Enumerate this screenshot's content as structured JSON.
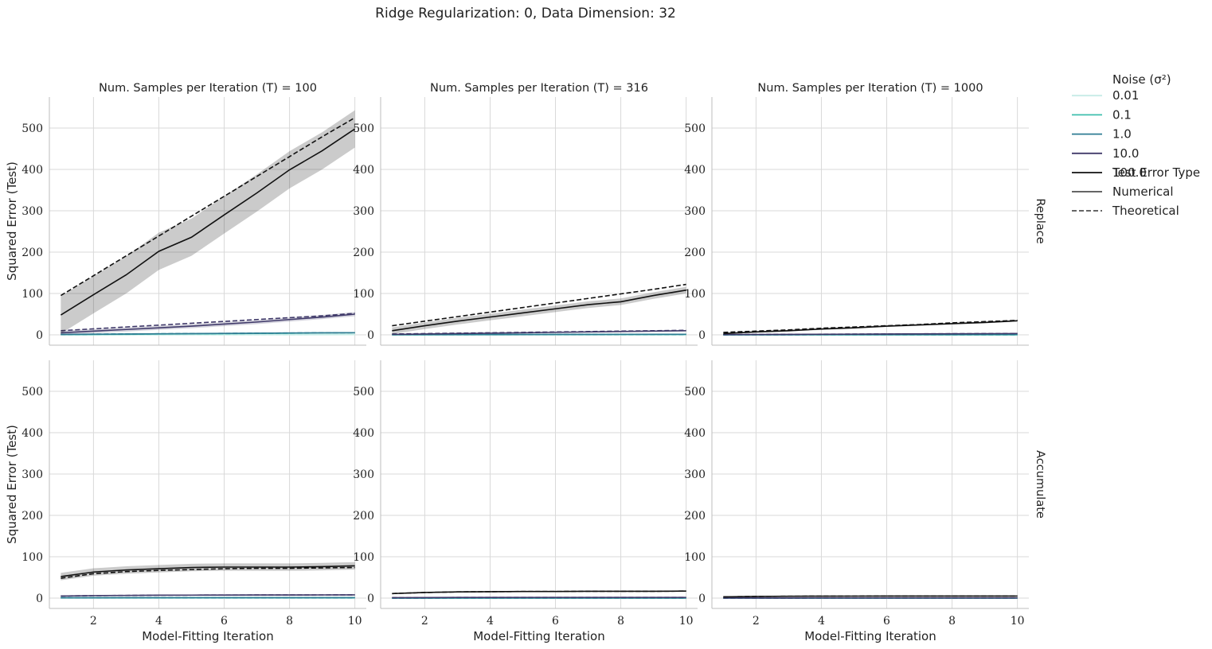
{
  "title": "Ridge Regularization: 0, Data Dimension: 32",
  "colors": {
    "grid": "#d9d9d9",
    "axis": "#bdbdbd",
    "noise": {
      "0.01": "#c6ece6",
      "0.1": "#3fbfae",
      "1.0": "#2f7c93",
      "10.0": "#403a6a",
      "100.0": "#111111"
    }
  },
  "legend": {
    "hue_title": "Noise (σ²)",
    "hue_entries": [
      "0.01",
      "0.1",
      "1.0",
      "10.0",
      "100.0"
    ],
    "style_title": "Test Error Type",
    "style_entries": [
      "Numerical",
      "Theoretical"
    ]
  },
  "chart_data": {
    "type": "line",
    "x": [
      1,
      2,
      3,
      4,
      5,
      6,
      7,
      8,
      9,
      10
    ],
    "xticks": [
      2,
      4,
      6,
      8,
      10
    ],
    "yticks": [
      0,
      100,
      200,
      300,
      400,
      500
    ],
    "xlim": [
      0.65,
      10.35
    ],
    "ylim": [
      -25,
      575
    ],
    "xlabel": "Model-Fitting Iteration",
    "ylabel": "Squared Error (Test)",
    "columns": [
      "Num. Samples per Iteration (T) = 100",
      "Num. Samples per Iteration (T) = 316",
      "Num. Samples per Iteration (T) = 1000"
    ],
    "rows": [
      "Replace",
      "Accumulate"
    ],
    "panels": [
      [
        {
          "series": [
            {
              "noise": "0.01",
              "numerical": [
                0.05,
                0.1,
                0.15,
                0.2,
                0.25,
                0.3,
                0.35,
                0.4,
                0.45,
                0.5
              ],
              "theoretical": [
                0.1,
                0.1,
                0.2,
                0.2,
                0.3,
                0.3,
                0.4,
                0.4,
                0.5,
                0.5
              ],
              "band": 0
            },
            {
              "noise": "0.1",
              "numerical": [
                0.5,
                0.9,
                1.4,
                1.9,
                2.4,
                2.9,
                3.4,
                3.9,
                4.4,
                4.9
              ],
              "theoretical": [
                1,
                1.5,
                2,
                2.5,
                3,
                3,
                3.5,
                4,
                4.5,
                5
              ],
              "band": 0
            },
            {
              "noise": "1.0",
              "numerical": [
                1,
                1.5,
                2,
                2.5,
                3,
                3.5,
                4,
                4.5,
                5,
                5.2
              ],
              "theoretical": [
                1,
                1.5,
                2,
                2.5,
                3,
                3.5,
                4,
                4.5,
                5,
                5.3
              ],
              "band": 0.5
            },
            {
              "noise": "10.0",
              "numerical": [
                5,
                9,
                13,
                17,
                21,
                26,
                31,
                37,
                43,
                50
              ],
              "theoretical": [
                10,
                14.5,
                19,
                23.5,
                28,
                32.5,
                37,
                41.5,
                46,
                52
              ],
              "band": 5
            },
            {
              "noise": "100.0",
              "numerical": [
                48,
                97,
                145,
                202,
                236,
                290,
                343,
                399,
                445,
                498
              ],
              "theoretical": [
                95,
                143,
                191,
                239,
                287,
                335,
                383,
                431,
                479,
                525
              ],
              "band": 45
            }
          ]
        },
        {
          "series": [
            {
              "noise": "0.01",
              "numerical": [
                0,
                0,
                0,
                0,
                0,
                0,
                0,
                0,
                0,
                0
              ],
              "theoretical": [
                0,
                0,
                0,
                0,
                0,
                0,
                0,
                0,
                0,
                0
              ],
              "band": 0
            },
            {
              "noise": "0.1",
              "numerical": [
                0.1,
                0.2,
                0.3,
                0.4,
                0.5,
                0.6,
                0.7,
                0.8,
                0.9,
                1
              ],
              "theoretical": [
                0.2,
                0.3,
                0.4,
                0.5,
                0.6,
                0.7,
                0.8,
                0.9,
                1,
                1.1
              ],
              "band": 0
            },
            {
              "noise": "1.0",
              "numerical": [
                0.5,
                0.6,
                0.7,
                0.8,
                0.9,
                1,
                1.1,
                1.2,
                1.3,
                1.4
              ],
              "theoretical": [
                0.5,
                0.6,
                0.7,
                0.8,
                0.9,
                1,
                1.1,
                1.2,
                1.3,
                1.4
              ],
              "band": 0
            },
            {
              "noise": "10.0",
              "numerical": [
                1,
                2,
                3,
                4,
                5,
                6,
                7,
                8,
                9,
                10
              ],
              "theoretical": [
                2,
                3,
                4,
                5,
                6,
                7,
                8,
                9,
                10,
                11
              ],
              "band": 1
            },
            {
              "noise": "100.0",
              "numerical": [
                10,
                22,
                33,
                43,
                53,
                63,
                73,
                80,
                95,
                108
              ],
              "theoretical": [
                22,
                33,
                44,
                55,
                66,
                77,
                88,
                99,
                110,
                122
              ],
              "band": 8
            }
          ]
        },
        {
          "series": [
            {
              "noise": "0.01",
              "numerical": [
                0,
                0,
                0,
                0,
                0,
                0,
                0,
                0,
                0,
                0
              ],
              "theoretical": [
                0,
                0,
                0,
                0,
                0,
                0,
                0,
                0,
                0,
                0
              ],
              "band": 0
            },
            {
              "noise": "0.1",
              "numerical": [
                0,
                0,
                0,
                0,
                0,
                0,
                0,
                0,
                0,
                0
              ],
              "theoretical": [
                0,
                0,
                0,
                0,
                0,
                0,
                0,
                0,
                0,
                0
              ],
              "band": 0
            },
            {
              "noise": "1.0",
              "numerical": [
                0.2,
                0.3,
                0.4,
                0.5,
                0.6,
                0.7,
                0.8,
                0.9,
                1,
                1.1
              ],
              "theoretical": [
                0.2,
                0.3,
                0.4,
                0.5,
                0.6,
                0.7,
                0.8,
                0.9,
                1,
                1.1
              ],
              "band": 0
            },
            {
              "noise": "10.0",
              "numerical": [
                0.5,
                0.8,
                1.1,
                1.4,
                1.7,
                2,
                2.3,
                2.6,
                2.9,
                3.2
              ],
              "theoretical": [
                0.6,
                0.9,
                1.2,
                1.5,
                1.8,
                2.1,
                2.4,
                2.7,
                3,
                3.3
              ],
              "band": 0.3
            },
            {
              "noise": "100.0",
              "numerical": [
                3,
                7,
                10,
                14,
                17,
                21,
                24,
                27,
                30,
                34
              ],
              "theoretical": [
                6,
                9,
                12,
                16,
                19,
                22,
                25,
                29,
                32,
                35
              ],
              "band": 2
            }
          ]
        }
      ],
      [
        {
          "series": [
            {
              "noise": "0.01",
              "numerical": [
                0,
                0,
                0,
                0,
                0,
                0,
                0,
                0,
                0,
                0
              ],
              "theoretical": [
                0,
                0,
                0,
                0,
                0,
                0,
                0,
                0,
                0,
                0
              ],
              "band": 0
            },
            {
              "noise": "0.1",
              "numerical": [
                0.5,
                0.6,
                0.7,
                0.7,
                0.8,
                0.8,
                0.8,
                0.8,
                0.8,
                0.8
              ],
              "theoretical": [
                0.5,
                0.6,
                0.7,
                0.7,
                0.8,
                0.8,
                0.8,
                0.8,
                0.8,
                0.8
              ],
              "band": 0
            },
            {
              "noise": "1.0",
              "numerical": [
                0.8,
                0.9,
                1,
                1,
                1.1,
                1.1,
                1.1,
                1.1,
                1.1,
                1.1
              ],
              "theoretical": [
                0.8,
                0.9,
                1,
                1,
                1.1,
                1.1,
                1.1,
                1.1,
                1.1,
                1.1
              ],
              "band": 0
            },
            {
              "noise": "10.0",
              "numerical": [
                5,
                6,
                6.5,
                7,
                7.2,
                7.4,
                7.5,
                7.6,
                7.7,
                7.8
              ],
              "theoretical": [
                5,
                6,
                6.5,
                7,
                7.2,
                7.4,
                7.5,
                7.6,
                7.7,
                7.8
              ],
              "band": 1
            },
            {
              "noise": "100.0",
              "numerical": [
                52,
                63,
                68,
                71,
                74,
                75,
                75,
                75,
                76,
                78
              ],
              "theoretical": [
                48,
                59,
                64,
                67,
                69,
                71,
                72,
                72,
                73,
                74
              ],
              "band": 9
            }
          ]
        },
        {
          "series": [
            {
              "noise": "0.01",
              "numerical": [
                0,
                0,
                0,
                0,
                0,
                0,
                0,
                0,
                0,
                0
              ],
              "theoretical": [
                0,
                0,
                0,
                0,
                0,
                0,
                0,
                0,
                0,
                0
              ],
              "band": 0
            },
            {
              "noise": "0.1",
              "numerical": [
                0.1,
                0.1,
                0.1,
                0.1,
                0.1,
                0.1,
                0.1,
                0.1,
                0.1,
                0.1
              ],
              "theoretical": [
                0.1,
                0.1,
                0.1,
                0.1,
                0.1,
                0.1,
                0.1,
                0.1,
                0.1,
                0.1
              ],
              "band": 0
            },
            {
              "noise": "1.0",
              "numerical": [
                0.2,
                0.2,
                0.3,
                0.3,
                0.3,
                0.3,
                0.3,
                0.3,
                0.3,
                0.3
              ],
              "theoretical": [
                0.2,
                0.2,
                0.3,
                0.3,
                0.3,
                0.3,
                0.3,
                0.3,
                0.3,
                0.3
              ],
              "band": 0
            },
            {
              "noise": "10.0",
              "numerical": [
                1,
                1.3,
                1.5,
                1.6,
                1.7,
                1.7,
                1.7,
                1.7,
                1.7,
                1.7
              ],
              "theoretical": [
                1,
                1.3,
                1.5,
                1.6,
                1.7,
                1.7,
                1.7,
                1.7,
                1.7,
                1.7
              ],
              "band": 0.2
            },
            {
              "noise": "100.0",
              "numerical": [
                11,
                13.5,
                15,
                15.5,
                16,
                16,
                16.5,
                16.5,
                16.5,
                17
              ],
              "theoretical": [
                11,
                13.5,
                15,
                15.5,
                16,
                16,
                16.5,
                16.5,
                16.5,
                17
              ],
              "band": 1
            }
          ]
        },
        {
          "series": [
            {
              "noise": "0.01",
              "numerical": [
                0,
                0,
                0,
                0,
                0,
                0,
                0,
                0,
                0,
                0
              ],
              "theoretical": [
                0,
                0,
                0,
                0,
                0,
                0,
                0,
                0,
                0,
                0
              ],
              "band": 0
            },
            {
              "noise": "0.1",
              "numerical": [
                0,
                0,
                0,
                0,
                0,
                0,
                0,
                0,
                0,
                0
              ],
              "theoretical": [
                0,
                0,
                0,
                0,
                0,
                0,
                0,
                0,
                0,
                0
              ],
              "band": 0
            },
            {
              "noise": "1.0",
              "numerical": [
                0.1,
                0.1,
                0.1,
                0.1,
                0.1,
                0.1,
                0.1,
                0.1,
                0.1,
                0.1
              ],
              "theoretical": [
                0.1,
                0.1,
                0.1,
                0.1,
                0.1,
                0.1,
                0.1,
                0.1,
                0.1,
                0.1
              ],
              "band": 0
            },
            {
              "noise": "10.0",
              "numerical": [
                0.3,
                0.4,
                0.4,
                0.5,
                0.5,
                0.5,
                0.5,
                0.5,
                0.5,
                0.5
              ],
              "theoretical": [
                0.3,
                0.4,
                0.4,
                0.5,
                0.5,
                0.5,
                0.5,
                0.5,
                0.5,
                0.5
              ],
              "band": 0
            },
            {
              "noise": "100.0",
              "numerical": [
                3,
                4,
                4.5,
                4.7,
                4.8,
                4.9,
                5,
                5,
                5,
                5
              ],
              "theoretical": [
                3,
                4,
                4.5,
                4.7,
                4.8,
                4.9,
                5,
                5,
                5,
                5
              ],
              "band": 0.5
            }
          ]
        }
      ]
    ]
  }
}
